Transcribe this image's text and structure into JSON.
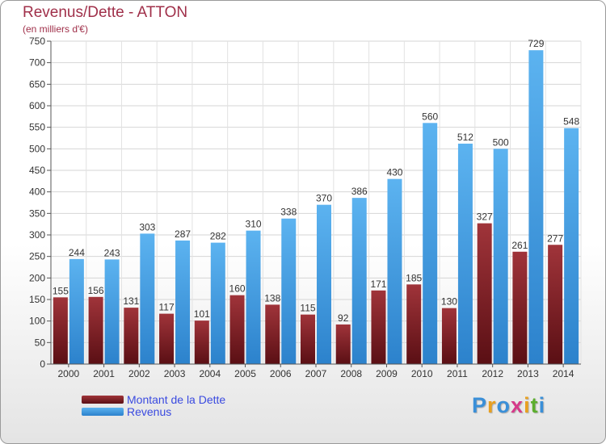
{
  "header": {
    "title": "Revenus/Dette - ATTON",
    "subtitle": "(en milliers d'€)"
  },
  "chart_data": {
    "type": "bar",
    "categories": [
      "2000",
      "2001",
      "2002",
      "2003",
      "2004",
      "2005",
      "2006",
      "2007",
      "2008",
      "2009",
      "2010",
      "2011",
      "2012",
      "2013",
      "2014"
    ],
    "series": [
      {
        "name": "Montant de la Dette",
        "color": "#7a1d22",
        "values": [
          155,
          156,
          131,
          117,
          101,
          160,
          138,
          115,
          92,
          171,
          185,
          130,
          327,
          261,
          277
        ],
        "labels": [
          "155",
          "156",
          "131",
          "117",
          "101",
          "160",
          "138",
          "115",
          "92",
          "171",
          "185",
          "130",
          "327",
          "261",
          "277"
        ]
      },
      {
        "name": "Revenus",
        "color": "#4aa3e6",
        "values": [
          244,
          243,
          303,
          287,
          282,
          310,
          338,
          370,
          386,
          430,
          560,
          512,
          500,
          729,
          548
        ],
        "labels": [
          "244",
          "243",
          "303",
          "287",
          "282",
          "310",
          "338",
          "370",
          "386",
          "430",
          "560",
          "512",
          "500",
          "729",
          "548"
        ]
      }
    ],
    "ylim": [
      0,
      750
    ],
    "yticks": [
      0,
      50,
      100,
      150,
      200,
      250,
      300,
      350,
      400,
      450,
      500,
      550,
      600,
      650,
      700,
      750
    ],
    "grid": true,
    "legend_position": "bottom-left"
  },
  "legend": {
    "items": [
      {
        "label": "Montant de la Dette",
        "color": "#7a1d22"
      },
      {
        "label": "Revenus",
        "color": "#4aa3e6"
      }
    ],
    "text_color": "#3a4ae0"
  },
  "logo": {
    "letters": [
      "P",
      "r",
      "o",
      "x",
      "i",
      "t",
      "i"
    ],
    "colors": [
      "#3a8fd8",
      "#e8a020",
      "#3a8fd8",
      "#d63a8a",
      "#e8a020",
      "#5cae2e",
      "#3a8fd8"
    ]
  }
}
